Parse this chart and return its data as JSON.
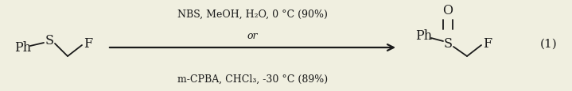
{
  "bg_color": "#f0efe0",
  "text_color": "#1a1a1a",
  "fig_width": 7.19,
  "fig_height": 1.16,
  "dpi": 100,
  "reagent_line1": "NBS, MeOH, H₂O, 0 °C (90%)",
  "reagent_line2": "or",
  "reagent_line3": "m-CPBA, CHCl₃, -30 °C (89%)",
  "equation_number": "(1)",
  "font_size_reagent": 9.0,
  "font_size_struct": 11.5,
  "font_size_eq": 11
}
